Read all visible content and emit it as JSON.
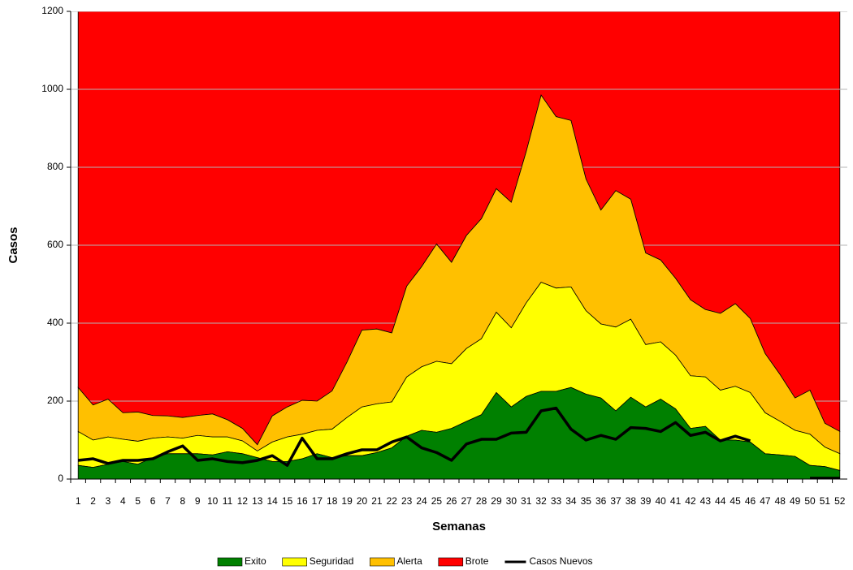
{
  "chart_data": {
    "type": "area",
    "stacked": true,
    "x_label": "Semanas",
    "y_label": "Casos",
    "categories": [
      "1",
      "2",
      "3",
      "4",
      "5",
      "6",
      "7",
      "8",
      "9",
      "10",
      "11",
      "12",
      "13",
      "14",
      "15",
      "16",
      "17",
      "18",
      "19",
      "20",
      "21",
      "22",
      "23",
      "24",
      "25",
      "26",
      "27",
      "28",
      "29",
      "30",
      "31",
      "32",
      "33",
      "34",
      "35",
      "36",
      "37",
      "38",
      "39",
      "40",
      "41",
      "42",
      "43",
      "44",
      "45",
      "46",
      "47",
      "48",
      "49",
      "50",
      "51",
      "52"
    ],
    "ylim": [
      0,
      1200
    ],
    "yticks": [
      0,
      200,
      400,
      600,
      800,
      1000,
      1200
    ],
    "grid": true,
    "legend": "bottom",
    "series": [
      {
        "name": "Exito",
        "color": "#008000",
        "values": [
          35,
          30,
          38,
          45,
          38,
          55,
          65,
          65,
          65,
          62,
          70,
          65,
          55,
          45,
          45,
          52,
          65,
          55,
          60,
          60,
          68,
          80,
          110,
          125,
          120,
          130,
          148,
          165,
          222,
          185,
          212,
          225,
          225,
          235,
          218,
          208,
          175,
          210,
          185,
          205,
          180,
          130,
          135,
          100,
          100,
          95,
          65,
          62,
          58,
          35,
          32,
          22
        ]
      },
      {
        "name": "Seguridad",
        "color": "#ffff00",
        "values": [
          87,
          70,
          70,
          57,
          59,
          50,
          43,
          40,
          47,
          46,
          38,
          33,
          17,
          50,
          63,
          63,
          60,
          73,
          98,
          125,
          125,
          118,
          152,
          163,
          182,
          166,
          187,
          195,
          206,
          203,
          240,
          280,
          265,
          258,
          214,
          190,
          215,
          200,
          160,
          147,
          138,
          135,
          127,
          128,
          138,
          127,
          105,
          86,
          67,
          80,
          50,
          43
        ]
      },
      {
        "name": "Alerta",
        "color": "#ffc000",
        "values": [
          113,
          90,
          97,
          68,
          75,
          58,
          54,
          53,
          51,
          59,
          44,
          32,
          16,
          67,
          77,
          87,
          75,
          98,
          142,
          197,
          192,
          177,
          233,
          257,
          301,
          260,
          290,
          308,
          317,
          322,
          388,
          480,
          440,
          427,
          338,
          292,
          350,
          308,
          235,
          210,
          197,
          195,
          173,
          197,
          212,
          190,
          152,
          120,
          83,
          113,
          61,
          57
        ]
      },
      {
        "name": "Brote",
        "color": "#ff0000",
        "values": [
          965,
          1010,
          995,
          1030,
          1028,
          1037,
          1038,
          1042,
          1037,
          1033,
          1048,
          1070,
          1112,
          1038,
          1015,
          998,
          1000,
          974,
          900,
          818,
          815,
          825,
          705,
          655,
          597,
          644,
          575,
          532,
          455,
          490,
          360,
          215,
          270,
          280,
          430,
          510,
          460,
          482,
          620,
          638,
          685,
          740,
          765,
          775,
          750,
          788,
          878,
          932,
          992,
          972,
          1057,
          1078
        ]
      },
      {
        "name": "Casos Nuevos",
        "color": "#000000",
        "type": "line",
        "values": [
          48,
          52,
          40,
          48,
          48,
          52,
          70,
          85,
          48,
          52,
          45,
          42,
          48,
          60,
          35,
          105,
          52,
          52,
          65,
          75,
          75,
          95,
          108,
          80,
          68,
          48,
          90,
          102,
          102,
          118,
          120,
          175,
          182,
          128,
          100,
          112,
          102,
          132,
          130,
          122,
          145,
          112,
          120,
          98,
          110,
          98,
          null,
          null,
          null,
          2,
          2,
          2
        ]
      }
    ]
  }
}
